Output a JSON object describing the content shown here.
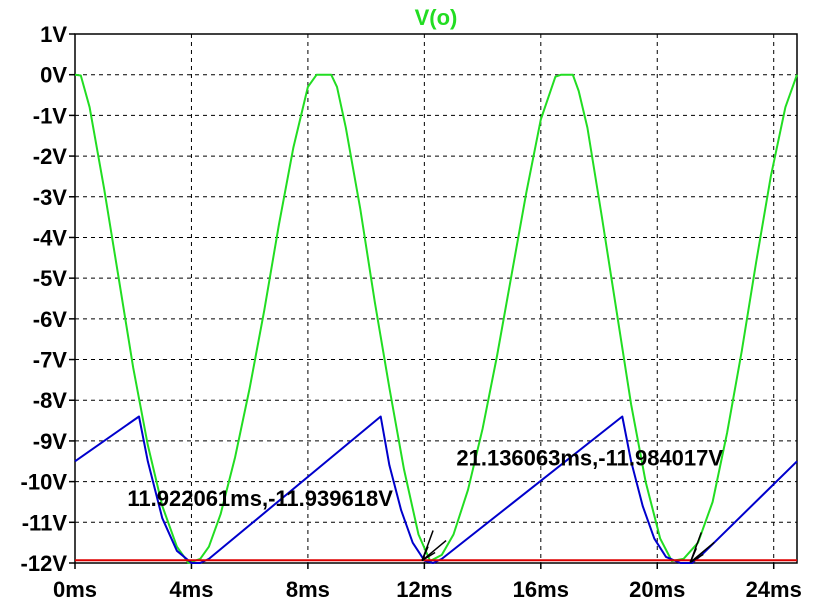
{
  "chart_data": {
    "type": "line",
    "title": "V(o)",
    "title_color": "#22dd22",
    "xlim": [
      0,
      24.8
    ],
    "ylim": [
      -12,
      1
    ],
    "x_ticks": [
      0,
      4,
      8,
      12,
      16,
      20,
      24
    ],
    "x_tick_labels": [
      "0ms",
      "4ms",
      "8ms",
      "12ms",
      "16ms",
      "20ms",
      "24ms"
    ],
    "y_ticks": [
      1,
      0,
      -1,
      -2,
      -3,
      -4,
      -5,
      -6,
      -7,
      -8,
      -9,
      -10,
      -11,
      -12
    ],
    "y_tick_labels": [
      "1V",
      "0V",
      "-1V",
      "-2V",
      "-3V",
      "-4V",
      "-5V",
      "-6V",
      "-7V",
      "-8V",
      "-9V",
      "-10V",
      "-11V",
      "-12V"
    ],
    "grid": true,
    "series": [
      {
        "color": "#22dd22",
        "x": [
          0,
          0.2,
          0.5,
          1.0,
          1.5,
          2.0,
          2.5,
          3.0,
          3.5,
          3.9,
          4.3,
          4.6,
          5.0,
          5.5,
          6.0,
          6.5,
          7.0,
          7.5,
          8.0,
          8.3,
          8.4,
          8.6,
          8.8,
          9.0,
          9.3,
          9.8,
          10.3,
          10.8,
          11.3,
          11.8,
          12.2,
          12.6,
          13.0,
          13.5,
          14.0,
          14.5,
          15.0,
          15.5,
          16.0,
          16.5,
          16.7,
          16.9,
          17.1,
          17.3,
          17.6,
          18.1,
          18.6,
          19.1,
          19.6,
          20.1,
          20.5,
          20.9,
          21.4,
          21.9,
          22.4,
          22.9,
          23.4,
          23.9,
          24.4,
          24.8
        ],
        "y": [
          0,
          -0.02,
          -0.8,
          -2.8,
          -5.0,
          -7.2,
          -9.1,
          -10.6,
          -11.6,
          -12,
          -11.9,
          -11.6,
          -10.8,
          -9.4,
          -7.7,
          -5.8,
          -3.7,
          -1.8,
          -0.3,
          0,
          0,
          0,
          0,
          -0.3,
          -1.3,
          -3.3,
          -5.6,
          -7.7,
          -9.7,
          -11.3,
          -11.95,
          -11.8,
          -11.3,
          -10.2,
          -8.7,
          -6.9,
          -4.9,
          -2.9,
          -1.1,
          -0.05,
          0,
          0,
          0,
          -0.4,
          -1.3,
          -3.5,
          -5.8,
          -8.1,
          -10.0,
          -11.4,
          -11.95,
          -11.9,
          -11.5,
          -10.5,
          -8.8,
          -6.8,
          -4.6,
          -2.5,
          -0.8,
          0
        ]
      },
      {
        "color": "#0000cc",
        "x": [
          0,
          2.2,
          2.5,
          3.0,
          3.5,
          4.0,
          4.3,
          4.6,
          10.5,
          10.8,
          11.2,
          11.6,
          12.0,
          12.3,
          12.6,
          18.8,
          19.1,
          19.5,
          19.9,
          20.3,
          20.8,
          21.2,
          21.6,
          24.8
        ],
        "y": [
          -9.5,
          -8.4,
          -9.5,
          -10.9,
          -11.7,
          -12,
          -12,
          -11.9,
          -8.4,
          -9.6,
          -10.7,
          -11.5,
          -11.94,
          -12,
          -11.9,
          -8.4,
          -9.5,
          -10.6,
          -11.4,
          -11.85,
          -12,
          -12,
          -11.75,
          -9.5
        ]
      },
      {
        "color": "#dd0000",
        "x": [
          0,
          24.8
        ],
        "y": [
          -11.93,
          -11.93
        ]
      }
    ],
    "annotations": [
      {
        "text": "11.922061ms,-11.939618V",
        "x": 11.922061,
        "y": -11.939618,
        "label_x": 1.8,
        "label_y": -10.6
      },
      {
        "text": "21.136063ms,-11.984017V",
        "x": 21.136063,
        "y": -11.984017,
        "label_x": 13.1,
        "label_y": -9.6
      }
    ]
  }
}
